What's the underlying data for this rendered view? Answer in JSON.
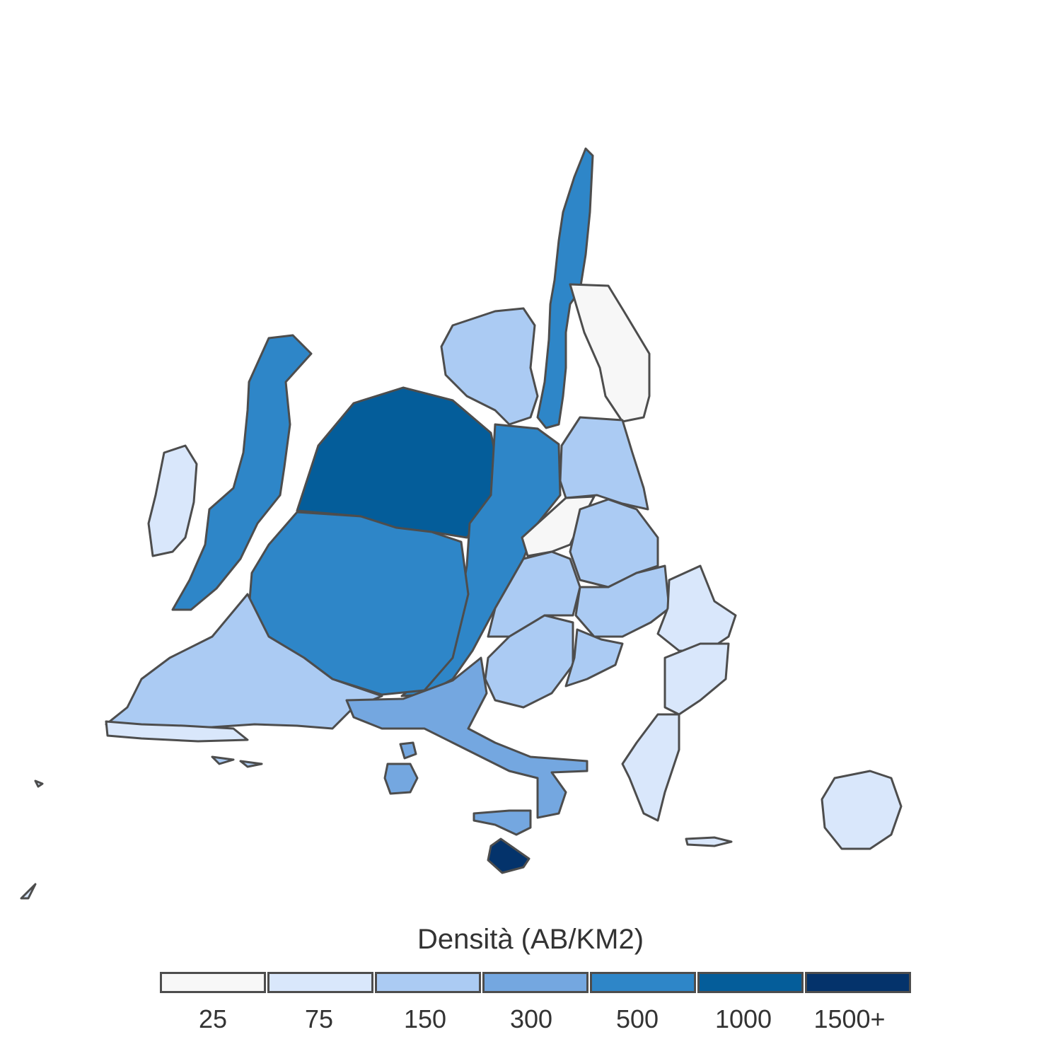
{
  "legend": {
    "title": "Densità (AB/KM2)",
    "classes": [
      {
        "label": "25",
        "color": "#f7f7f7"
      },
      {
        "label": "75",
        "color": "#d9e7fb"
      },
      {
        "label": "150",
        "color": "#abcbf3"
      },
      {
        "label": "300",
        "color": "#74a7e0"
      },
      {
        "label": "500",
        "color": "#2e86c8"
      },
      {
        "label": "1000",
        "color": "#045d9a"
      },
      {
        "label": "1500+",
        "color": "#04336b"
      }
    ]
  },
  "map": {
    "type": "cartogram",
    "subject": "Europe population density"
  }
}
